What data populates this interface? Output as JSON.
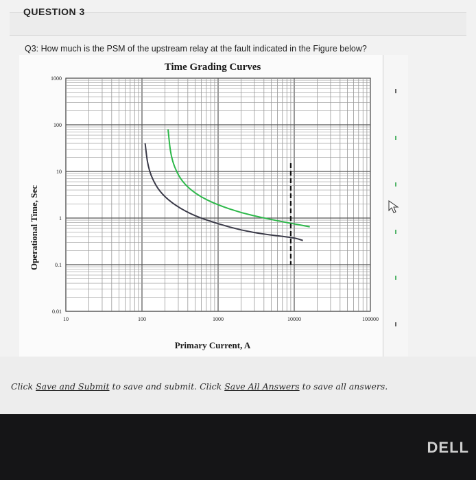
{
  "question": {
    "title": "QUESTION 3",
    "text": "Q3: How much is the PSM of the upstream relay at the fault indicated in the Figure below?"
  },
  "footer": {
    "part1": "Click ",
    "save_submit": "Save and Submit",
    "part2": " to save and submit. Click ",
    "save_all": "Save All Answers",
    "part3": " to save all answers."
  },
  "brand": {
    "label": "DELL"
  },
  "icons": {
    "cursor": "cursor-arrow-icon"
  },
  "colors": {
    "upper_curve": "#2db84a",
    "lower_curve": "#3a3a48",
    "fault_line": "#111111"
  },
  "chart_data": {
    "type": "line",
    "title": "Time Grading Curves",
    "xlabel": "Primary Current, A",
    "ylabel": "Operational Time, Sec",
    "xscale": "log",
    "yscale": "log",
    "xlim": [
      10,
      100000
    ],
    "ylim": [
      0.01,
      1000
    ],
    "x_ticks": [
      "10",
      "100",
      "1000",
      "10000",
      "100000"
    ],
    "y_ticks": [
      "0.01",
      "0.1",
      "1",
      "10",
      "100",
      "1000"
    ],
    "grid": true,
    "series": [
      {
        "color": "#2db84a",
        "points": [
          [
            220,
            80
          ],
          [
            240,
            20
          ],
          [
            300,
            8
          ],
          [
            400,
            4.5
          ],
          [
            600,
            2.8
          ],
          [
            1000,
            1.9
          ],
          [
            2000,
            1.3
          ],
          [
            4000,
            1.0
          ],
          [
            8000,
            0.8
          ],
          [
            16000,
            0.65
          ]
        ]
      },
      {
        "color": "#3a3a48",
        "points": [
          [
            110,
            40
          ],
          [
            120,
            12
          ],
          [
            150,
            5
          ],
          [
            200,
            2.8
          ],
          [
            300,
            1.7
          ],
          [
            500,
            1.1
          ],
          [
            1000,
            0.75
          ],
          [
            2000,
            0.55
          ],
          [
            4000,
            0.45
          ],
          [
            10000,
            0.38
          ],
          [
            13000,
            0.33
          ]
        ]
      }
    ],
    "annotations": [
      {
        "type": "vertical_dashed_line",
        "x": 9000,
        "y_range": [
          0.1,
          15
        ]
      }
    ]
  }
}
